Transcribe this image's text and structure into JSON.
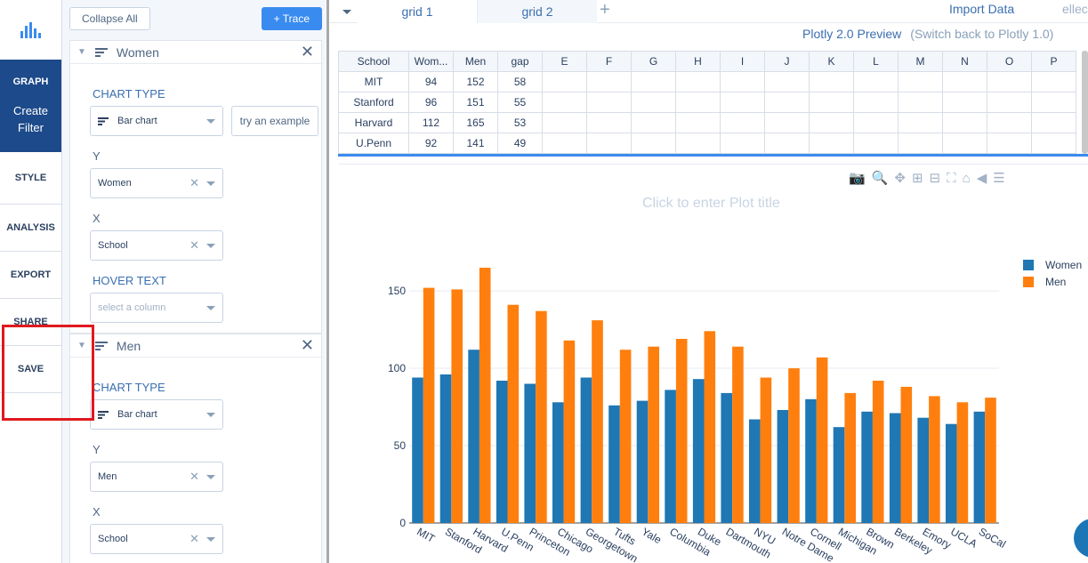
{
  "nav": {
    "graph": "GRAPH",
    "create": "Create",
    "filter": "Filter",
    "style": "STYLE",
    "analysis": "ANALYSIS",
    "export": "EXPORT",
    "share": "SHARE",
    "save": "SAVE"
  },
  "panel": {
    "collapse_all": "Collapse All",
    "add_trace": "+ Trace",
    "traces": [
      {
        "name": "Women",
        "chart_type_label": "CHART TYPE",
        "chart_type": "Bar chart",
        "example": "try an example",
        "y_label": "Y",
        "y_value": "Women",
        "x_label": "X",
        "x_value": "School",
        "hover_label": "HOVER TEXT",
        "hover_placeholder": "select a column"
      },
      {
        "name": "Men",
        "chart_type_label": "CHART TYPE",
        "chart_type": "Bar chart",
        "y_label": "Y",
        "y_value": "Men",
        "x_label": "X",
        "x_value": "School"
      }
    ]
  },
  "tabs": [
    "grid 1",
    "grid 2"
  ],
  "header": {
    "import_data": "Import Data",
    "user": "ellec",
    "preview": "Plotly 2.0 Preview",
    "switch_back": "(Switch back to Plotly 1.0)"
  },
  "grid": {
    "headers": [
      "School",
      "Wom...",
      "Men",
      "gap",
      "E",
      "F",
      "G",
      "H",
      "I",
      "J",
      "K",
      "L",
      "M",
      "N",
      "O",
      "P"
    ],
    "rows": [
      [
        "MIT",
        "94",
        "152",
        "58"
      ],
      [
        "Stanford",
        "96",
        "151",
        "55"
      ],
      [
        "Harvard",
        "112",
        "165",
        "53"
      ],
      [
        "U.Penn",
        "92",
        "141",
        "49"
      ]
    ]
  },
  "plot": {
    "title_placeholder": "Click to enter Plot title"
  },
  "colors": {
    "women": "#1f77b4",
    "men": "#ff7f0e",
    "nav_active": "#1d4a8a",
    "highlight": "#e0191e"
  },
  "chart_data": {
    "type": "bar",
    "categories": [
      "MIT",
      "Stanford",
      "Harvard",
      "U.Penn",
      "Princeton",
      "Chicago",
      "Georgetown",
      "Tufts",
      "Yale",
      "Columbia",
      "Duke",
      "Dartmouth",
      "NYU",
      "Notre Dame",
      "Cornell",
      "Michigan",
      "Brown",
      "Berkeley",
      "Emory",
      "UCLA",
      "SoCal"
    ],
    "series": [
      {
        "name": "Women",
        "values": [
          94,
          96,
          112,
          92,
          90,
          78,
          94,
          76,
          79,
          86,
          93,
          84,
          67,
          73,
          80,
          62,
          72,
          71,
          68,
          64,
          72
        ]
      },
      {
        "name": "Men",
        "values": [
          152,
          151,
          165,
          141,
          137,
          118,
          131,
          112,
          114,
          119,
          124,
          114,
          94,
          100,
          107,
          84,
          92,
          88,
          82,
          78,
          81
        ]
      }
    ],
    "yticks": [
      "0",
      "50",
      "100",
      "150"
    ],
    "ylim": [
      0,
      165
    ],
    "grid": true,
    "legend": "top-right"
  }
}
